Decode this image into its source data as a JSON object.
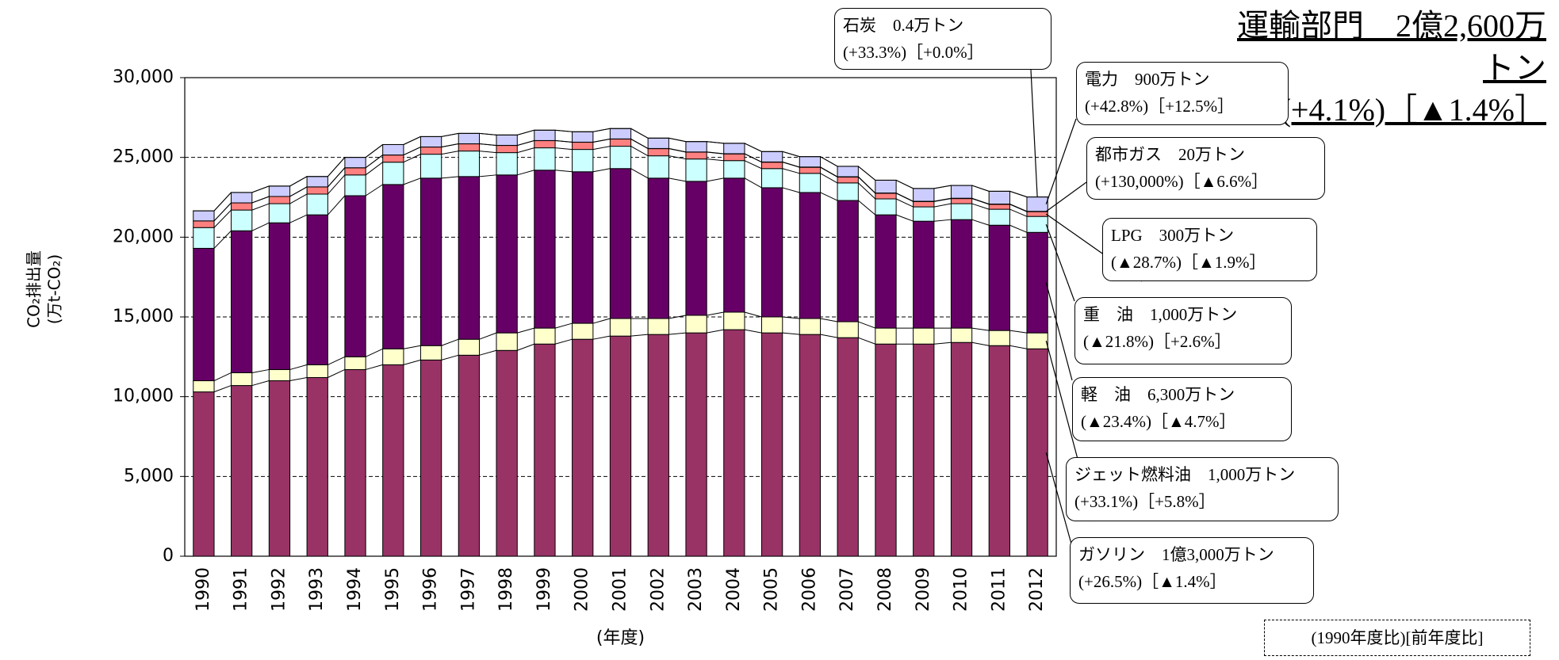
{
  "chart_data": {
    "type": "stacked-bar",
    "title": "運輸部門　2億2,600万トン",
    "subtitle": "(+4.1%)［▲1.4%］",
    "y_label": "CO₂排出量",
    "y_label_unit": "(万t-CO₂)",
    "x_label": "(年度)",
    "categories": [
      "1990",
      "1991",
      "1992",
      "1993",
      "1994",
      "1995",
      "1996",
      "1997",
      "1998",
      "1999",
      "2000",
      "2001",
      "2002",
      "2003",
      "2004",
      "2005",
      "2006",
      "2007",
      "2008",
      "2009",
      "2010",
      "2011",
      "2012"
    ],
    "series": [
      {
        "color": "#993366",
        "values": [
          10300,
          10700,
          11000,
          11200,
          11700,
          12000,
          12300,
          12600,
          12900,
          13300,
          13600,
          13800,
          13900,
          14000,
          14200,
          14000,
          13900,
          13700,
          13300,
          13300,
          13400,
          13200,
          13000
        ]
      },
      {
        "color": "#ffffcc",
        "values": [
          700,
          800,
          700,
          800,
          800,
          1000,
          900,
          1000,
          1100,
          1000,
          1000,
          1100,
          1000,
          1100,
          1100,
          1000,
          1000,
          1000,
          1000,
          1000,
          900,
          950,
          1000
        ]
      },
      {
        "color": "#660066",
        "values": [
          8300,
          8900,
          9200,
          9400,
          10100,
          10300,
          10500,
          10200,
          9900,
          9900,
          9500,
          9400,
          8800,
          8400,
          8400,
          8100,
          7900,
          7600,
          7100,
          6700,
          6800,
          6600,
          6300
        ]
      },
      {
        "color": "#ccffff",
        "values": [
          1300,
          1300,
          1200,
          1300,
          1300,
          1400,
          1500,
          1600,
          1400,
          1400,
          1400,
          1400,
          1400,
          1400,
          1100,
          1200,
          1200,
          1100,
          1000,
          900,
          1000,
          1000,
          1000
        ]
      },
      {
        "color": "#ff8080",
        "values": [
          420,
          450,
          450,
          450,
          450,
          450,
          450,
          450,
          450,
          450,
          450,
          450,
          450,
          430,
          420,
          400,
          380,
          370,
          350,
          330,
          320,
          306,
          300
        ]
      },
      {
        "color": "#0066cc",
        "values": [
          0,
          1,
          1,
          2,
          2,
          3,
          3,
          4,
          5,
          6,
          7,
          8,
          9,
          11,
          13,
          15,
          17,
          19,
          20,
          21,
          21,
          21,
          20
        ]
      },
      {
        "color": "#ccccff",
        "values": [
          630,
          650,
          650,
          650,
          650,
          650,
          650,
          650,
          650,
          650,
          650,
          650,
          650,
          650,
          650,
          650,
          650,
          650,
          800,
          800,
          800,
          800,
          900
        ]
      },
      {
        "color": "#000080",
        "values": [
          3,
          3,
          3,
          3,
          3,
          3,
          3,
          3,
          3,
          3,
          3,
          3,
          3,
          3,
          3,
          3,
          3,
          3,
          3,
          3,
          3,
          3,
          4
        ]
      }
    ],
    "ylim": [
      0,
      30000
    ],
    "yticks": [
      0,
      {
        "value": 5000,
        "label": "5,000"
      },
      {
        "value": 10000,
        "label": "10,000"
      },
      {
        "value": 15000,
        "label": "15,000"
      },
      {
        "value": 20000,
        "label": "20,000"
      },
      {
        "value": 25000,
        "label": "25,000"
      },
      {
        "value": 30000,
        "label": "30,000"
      }
    ],
    "grid": true,
    "annotations": [
      {
        "text": "石炭　0.4万トン",
        "change": "(+33.3%)［+0.0%］"
      },
      {
        "text": "電力　900万トン",
        "change": "(+42.8%)［+12.5%］"
      },
      {
        "text": "都市ガス　20万トン",
        "change": "(+130,000%)［▲6.6%］"
      },
      {
        "text": "LPG　300万トン",
        "change": "(▲28.7%)［▲1.9%］"
      },
      {
        "text": "重　油　1,000万トン",
        "change": "(▲21.8%)［+2.6%］"
      },
      {
        "text": "軽　油　6,300万トン",
        "change": "(▲23.4%)［▲4.7%］"
      },
      {
        "text": "ジェット燃料油　1,000万トン",
        "change": "(+33.1%)［+5.8%］"
      },
      {
        "text": "ガソリン　1億3,000万トン",
        "change": "(+26.5%)［▲1.4%］"
      }
    ],
    "note": "(1990年度比)[前年度比]"
  }
}
